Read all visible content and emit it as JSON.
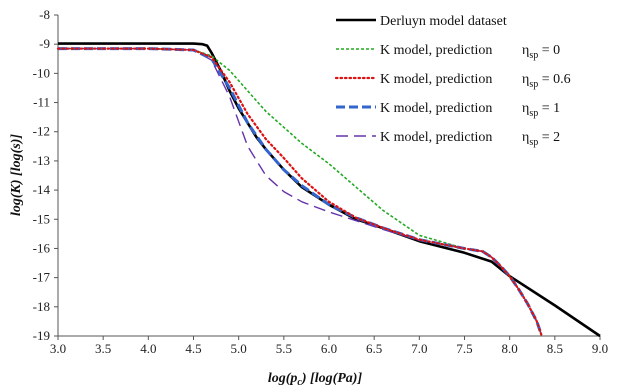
{
  "chart_data": {
    "type": "line",
    "xlabel": "log(p_c) [log(Pa)]",
    "xlabel_parts": {
      "main": "log(p",
      "sub": "c",
      "tail": ") [log(Pa)]"
    },
    "ylabel": "log(K) [log(s)]",
    "xlim": [
      3.0,
      9.0
    ],
    "ylim": [
      -19,
      -8
    ],
    "x_ticks": [
      3.0,
      3.5,
      4.0,
      4.5,
      5.0,
      5.5,
      6.0,
      6.5,
      7.0,
      7.5,
      8.0,
      8.5,
      9.0
    ],
    "x_tick_labels": [
      "3.0",
      "3.5",
      "4.0",
      "4.5",
      "5.0",
      "5.5",
      "6.0",
      "6.5",
      "7.0",
      "7.5",
      "8.0",
      "8.5",
      "9.0"
    ],
    "y_ticks": [
      -8,
      -9,
      -10,
      -11,
      -12,
      -13,
      -14,
      -15,
      -16,
      -17,
      -18,
      -19
    ],
    "y_tick_labels": [
      "-8",
      "-9",
      "-10",
      "-11",
      "-12",
      "-13",
      "-14",
      "-15",
      "-16",
      "-17",
      "-18",
      "-19"
    ],
    "grid": false,
    "legend_position": "top-right",
    "series": [
      {
        "name": "Derluyn model dataset",
        "eta_label": "",
        "color": "#000000",
        "style": "solid",
        "x": [
          3.0,
          4.0,
          4.5,
          4.6,
          4.65,
          4.7,
          4.8,
          4.9,
          5.0,
          5.1,
          5.2,
          5.3,
          5.5,
          5.7,
          6.0,
          6.3,
          6.5,
          7.0,
          7.5,
          7.8,
          8.0,
          8.5,
          9.0
        ],
        "y": [
          -8.98,
          -8.98,
          -8.98,
          -9.0,
          -9.05,
          -9.3,
          -9.9,
          -10.6,
          -11.2,
          -11.7,
          -12.2,
          -12.6,
          -13.3,
          -13.9,
          -14.5,
          -15.0,
          -15.2,
          -15.75,
          -16.15,
          -16.45,
          -16.95,
          -17.95,
          -19.0
        ]
      },
      {
        "name": "K model, prediction",
        "eta_label": "η_sp = 0",
        "eta_parts": {
          "main": "η",
          "sub": "sp",
          "tail": " = 0"
        },
        "color": "#22aa22",
        "style": "dotted",
        "x": [
          3.0,
          4.0,
          4.5,
          4.7,
          4.9,
          5.1,
          5.3,
          5.5,
          5.7,
          6.0,
          6.3,
          6.6,
          7.0,
          7.5,
          7.7,
          7.8,
          7.9,
          8.0,
          8.1,
          8.2,
          8.3,
          8.35
        ],
        "y": [
          -9.15,
          -9.15,
          -9.2,
          -9.4,
          -9.9,
          -10.6,
          -11.3,
          -11.85,
          -12.4,
          -13.1,
          -13.9,
          -14.7,
          -15.55,
          -16.0,
          -16.1,
          -16.3,
          -16.6,
          -16.95,
          -17.4,
          -17.9,
          -18.5,
          -18.95
        ]
      },
      {
        "name": "K model, prediction",
        "eta_label": "η_sp = 0.6",
        "eta_parts": {
          "main": "η",
          "sub": "sp",
          "tail": " = 0.6"
        },
        "color": "#dd1111",
        "style": "dotted",
        "x": [
          3.0,
          4.0,
          4.5,
          4.7,
          4.9,
          5.1,
          5.3,
          5.5,
          5.7,
          6.0,
          6.3,
          6.6,
          7.0,
          7.5,
          7.7,
          7.8,
          7.9,
          8.0,
          8.1,
          8.2,
          8.3,
          8.35
        ],
        "y": [
          -9.15,
          -9.15,
          -9.2,
          -9.45,
          -10.3,
          -11.4,
          -12.25,
          -12.9,
          -13.6,
          -14.4,
          -14.95,
          -15.3,
          -15.7,
          -16.0,
          -16.1,
          -16.3,
          -16.6,
          -16.95,
          -17.4,
          -17.9,
          -18.5,
          -18.95
        ]
      },
      {
        "name": "K model, prediction",
        "eta_label": "η_sp = 1",
        "eta_parts": {
          "main": "η",
          "sub": "sp",
          "tail": " = 1"
        },
        "color": "#3366cc",
        "style": "dashed",
        "x": [
          3.0,
          4.0,
          4.5,
          4.7,
          4.9,
          5.1,
          5.3,
          5.5,
          5.7,
          6.0,
          6.3,
          6.6,
          7.0,
          7.5,
          7.7,
          7.8,
          7.9,
          8.0,
          8.1,
          8.2,
          8.3,
          8.35
        ],
        "y": [
          -9.15,
          -9.15,
          -9.2,
          -9.5,
          -10.5,
          -11.7,
          -12.6,
          -13.3,
          -13.85,
          -14.5,
          -14.95,
          -15.3,
          -15.7,
          -16.0,
          -16.1,
          -16.3,
          -16.6,
          -16.95,
          -17.4,
          -17.9,
          -18.5,
          -18.95
        ]
      },
      {
        "name": "K model, prediction",
        "eta_label": "η_sp = 2",
        "eta_parts": {
          "main": "η",
          "sub": "sp",
          "tail": " = 2"
        },
        "color": "#6633aa",
        "style": "longdash",
        "x": [
          3.0,
          4.0,
          4.5,
          4.7,
          4.9,
          5.1,
          5.3,
          5.5,
          5.7,
          6.0,
          6.3,
          6.6,
          7.0,
          7.5,
          7.7,
          7.8,
          7.9,
          8.0,
          8.1,
          8.2,
          8.3,
          8.35
        ],
        "y": [
          -9.15,
          -9.15,
          -9.2,
          -9.55,
          -10.8,
          -12.5,
          -13.5,
          -14.05,
          -14.4,
          -14.75,
          -15.05,
          -15.35,
          -15.72,
          -16.0,
          -16.1,
          -16.3,
          -16.6,
          -16.95,
          -17.4,
          -17.9,
          -18.5,
          -18.95
        ]
      }
    ]
  }
}
